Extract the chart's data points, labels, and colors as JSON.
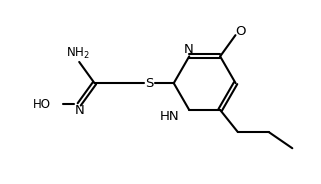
{
  "background_color": "#ffffff",
  "line_color": "#000000",
  "text_color": "#000000",
  "line_width": 1.5,
  "font_size": 8.5,
  "figsize": [
    3.21,
    1.84
  ],
  "dpi": 100,
  "xlim": [
    0,
    10
  ],
  "ylim": [
    0,
    6.2
  ]
}
